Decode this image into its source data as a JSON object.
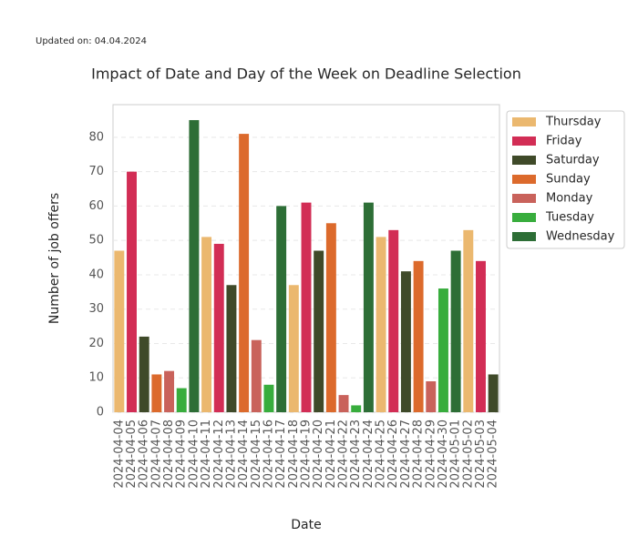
{
  "chart_data": {
    "type": "bar",
    "note": "Updated on: 04.04.2024",
    "title": "Impact of Date and Day of the Week on Deadline Selection",
    "x_label": "Date",
    "y_label": "Number of job offers",
    "categories": [
      "2024-04-04",
      "2024-04-05",
      "2024-04-06",
      "2024-04-07",
      "2024-04-08",
      "2024-04-09",
      "2024-04-10",
      "2024-04-11",
      "2024-04-12",
      "2024-04-13",
      "2024-04-14",
      "2024-04-15",
      "2024-04-16",
      "2024-04-17",
      "2024-04-18",
      "2024-04-19",
      "2024-04-20",
      "2024-04-21",
      "2024-04-22",
      "2024-04-23",
      "2024-04-24",
      "2024-04-25",
      "2024-04-26",
      "2024-04-27",
      "2024-04-28",
      "2024-04-29",
      "2024-04-30",
      "2024-05-01",
      "2024-05-02",
      "2024-05-03",
      "2024-05-04"
    ],
    "series": [
      {
        "name": "Thursday",
        "color": "#ebb86f",
        "values": [
          47,
          null,
          null,
          null,
          null,
          null,
          null,
          51,
          null,
          null,
          null,
          null,
          null,
          null,
          37,
          null,
          null,
          null,
          null,
          null,
          null,
          51,
          null,
          null,
          null,
          null,
          null,
          null,
          53,
          null,
          null
        ]
      },
      {
        "name": "Friday",
        "color": "#d22d55",
        "values": [
          null,
          70,
          null,
          null,
          null,
          null,
          null,
          null,
          49,
          null,
          null,
          null,
          null,
          null,
          null,
          61,
          null,
          null,
          null,
          null,
          null,
          null,
          53,
          null,
          null,
          null,
          null,
          null,
          null,
          44,
          null
        ]
      },
      {
        "name": "Saturday",
        "color": "#3f4a29",
        "values": [
          null,
          null,
          22,
          null,
          null,
          null,
          null,
          null,
          null,
          37,
          null,
          null,
          null,
          null,
          null,
          null,
          47,
          null,
          null,
          null,
          null,
          null,
          null,
          41,
          null,
          null,
          null,
          null,
          null,
          null,
          11
        ]
      },
      {
        "name": "Sunday",
        "color": "#dc6a2c",
        "values": [
          null,
          null,
          null,
          11,
          null,
          null,
          null,
          null,
          null,
          null,
          81,
          null,
          null,
          null,
          null,
          null,
          null,
          55,
          null,
          null,
          null,
          null,
          null,
          null,
          44,
          null,
          null,
          null,
          null,
          null,
          null
        ]
      },
      {
        "name": "Monday",
        "color": "#c9625b",
        "values": [
          null,
          null,
          null,
          null,
          12,
          null,
          null,
          null,
          null,
          null,
          null,
          21,
          null,
          null,
          null,
          null,
          null,
          null,
          5,
          null,
          null,
          null,
          null,
          null,
          null,
          9,
          null,
          null,
          null,
          null,
          null
        ]
      },
      {
        "name": "Tuesday",
        "color": "#38ad3d",
        "values": [
          null,
          null,
          null,
          null,
          null,
          7,
          null,
          null,
          null,
          null,
          null,
          null,
          8,
          null,
          null,
          null,
          null,
          null,
          null,
          2,
          null,
          null,
          null,
          null,
          null,
          null,
          36,
          null,
          null,
          null,
          null
        ]
      },
      {
        "name": "Wednesday",
        "color": "#2d6e36",
        "values": [
          null,
          null,
          null,
          null,
          null,
          null,
          85,
          null,
          null,
          null,
          null,
          null,
          null,
          60,
          null,
          null,
          null,
          null,
          null,
          null,
          61,
          null,
          null,
          null,
          null,
          null,
          null,
          47,
          null,
          null,
          null
        ]
      }
    ],
    "ylim": [
      0,
      89.5
    ],
    "yticks": [
      0,
      10,
      20,
      30,
      40,
      50,
      60,
      70,
      80
    ],
    "grid": true,
    "legend": "upper right outside"
  }
}
